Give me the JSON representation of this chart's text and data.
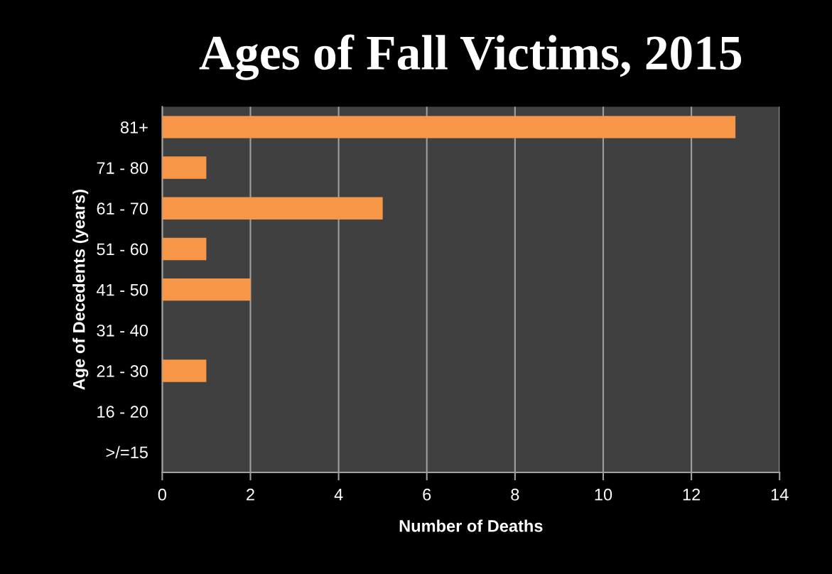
{
  "chart_data": {
    "type": "bar",
    "orientation": "horizontal",
    "title": "Ages of Fall Victims, 2015",
    "xlabel": "Number of Deaths",
    "ylabel": "Age of Decedents (years)",
    "categories": [
      "81+",
      "71 - 80",
      "61 - 70",
      "51 - 60",
      "41 - 50",
      "31 - 40",
      "21 - 30",
      "16 - 20",
      ">/=15"
    ],
    "values": [
      13,
      1,
      5,
      1,
      2,
      0,
      1,
      0,
      0
    ],
    "color": "#f79646",
    "xlim": [
      0,
      14
    ],
    "xticks": [
      0,
      2,
      4,
      6,
      8,
      10,
      12,
      14
    ],
    "grid": "x",
    "legend": false
  }
}
